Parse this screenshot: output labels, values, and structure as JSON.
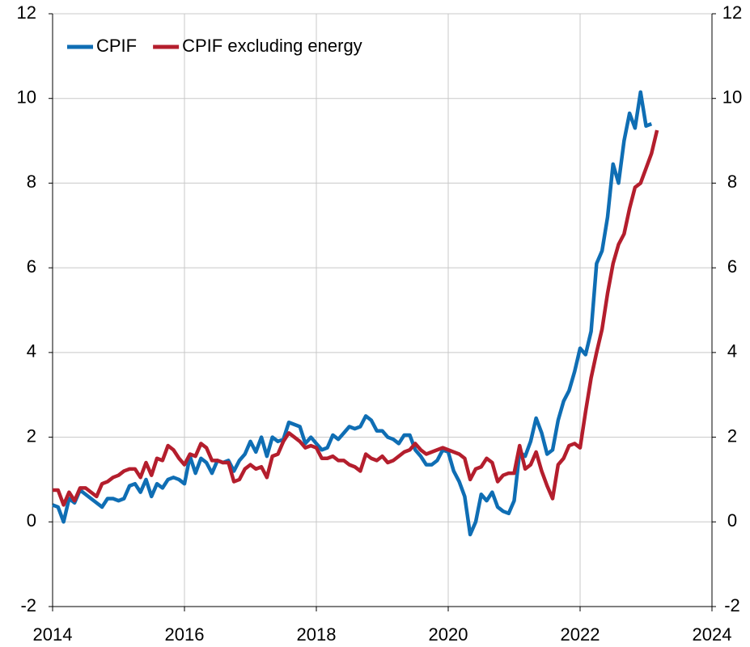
{
  "chart_data": {
    "type": "line",
    "x": [
      2014,
      2014.083,
      2014.167,
      2014.25,
      2014.333,
      2014.417,
      2014.5,
      2014.583,
      2014.667,
      2014.75,
      2014.833,
      2014.917,
      2015,
      2015.083,
      2015.167,
      2015.25,
      2015.333,
      2015.417,
      2015.5,
      2015.583,
      2015.667,
      2015.75,
      2015.833,
      2015.917,
      2016,
      2016.083,
      2016.167,
      2016.25,
      2016.333,
      2016.417,
      2016.5,
      2016.583,
      2016.667,
      2016.75,
      2016.833,
      2016.917,
      2017,
      2017.083,
      2017.167,
      2017.25,
      2017.333,
      2017.417,
      2017.5,
      2017.583,
      2017.667,
      2017.75,
      2017.833,
      2017.917,
      2018,
      2018.083,
      2018.167,
      2018.25,
      2018.333,
      2018.417,
      2018.5,
      2018.583,
      2018.667,
      2018.75,
      2018.833,
      2018.917,
      2019,
      2019.083,
      2019.167,
      2019.25,
      2019.333,
      2019.417,
      2019.5,
      2019.583,
      2019.667,
      2019.75,
      2019.833,
      2019.917,
      2020,
      2020.083,
      2020.167,
      2020.25,
      2020.333,
      2020.417,
      2020.5,
      2020.583,
      2020.667,
      2020.75,
      2020.833,
      2020.917,
      2021,
      2021.083,
      2021.167,
      2021.25,
      2021.333,
      2021.417,
      2021.5,
      2021.583,
      2021.667,
      2021.75,
      2021.833,
      2021.917,
      2022,
      2022.083,
      2022.167,
      2022.25,
      2022.333,
      2022.417,
      2022.5,
      2022.583,
      2022.667,
      2022.75,
      2022.833,
      2022.917,
      2023,
      2023.083,
      2023.167
    ],
    "series": [
      {
        "name": "CPIF",
        "color": "#0f6eb4",
        "values": [
          0.4,
          0.35,
          0.0,
          0.55,
          0.45,
          0.75,
          0.65,
          0.55,
          0.45,
          0.35,
          0.55,
          0.55,
          0.5,
          0.55,
          0.85,
          0.9,
          0.7,
          1.0,
          0.6,
          0.9,
          0.8,
          1.0,
          1.05,
          1.0,
          0.9,
          1.55,
          1.15,
          1.5,
          1.4,
          1.15,
          1.45,
          1.4,
          1.45,
          1.2,
          1.45,
          1.6,
          1.9,
          1.65,
          2.0,
          1.55,
          2.0,
          1.9,
          1.95,
          2.35,
          2.3,
          2.25,
          1.85,
          2.0,
          1.85,
          1.7,
          1.75,
          2.05,
          1.95,
          2.1,
          2.25,
          2.2,
          2.25,
          2.5,
          2.4,
          2.15,
          2.15,
          2.0,
          1.95,
          1.85,
          2.05,
          2.05,
          1.7,
          1.55,
          1.35,
          1.35,
          1.45,
          1.7,
          1.65,
          1.2,
          0.95,
          0.6,
          -0.3,
          0.0,
          0.65,
          0.5,
          0.7,
          0.35,
          0.25,
          0.2,
          0.5,
          1.65,
          1.55,
          1.9,
          2.45,
          2.1,
          1.6,
          1.7,
          2.4,
          2.85,
          3.1,
          3.55,
          4.1,
          3.95,
          4.5,
          6.1,
          6.4,
          7.2,
          8.45,
          8.0,
          9.0,
          9.65,
          9.3,
          10.15,
          9.35,
          9.4,
          null
        ]
      },
      {
        "name": "CPIF excluding energy",
        "color": "#b41e2d",
        "values": [
          0.75,
          0.75,
          0.4,
          0.7,
          0.5,
          0.8,
          0.8,
          0.7,
          0.6,
          0.9,
          0.95,
          1.05,
          1.1,
          1.2,
          1.25,
          1.25,
          1.05,
          1.4,
          1.1,
          1.5,
          1.45,
          1.8,
          1.7,
          1.5,
          1.35,
          1.6,
          1.55,
          1.85,
          1.75,
          1.45,
          1.45,
          1.4,
          1.4,
          0.95,
          1.0,
          1.25,
          1.35,
          1.25,
          1.3,
          1.05,
          1.55,
          1.6,
          1.9,
          2.1,
          2.0,
          1.9,
          1.75,
          1.8,
          1.75,
          1.5,
          1.5,
          1.55,
          1.45,
          1.45,
          1.35,
          1.3,
          1.2,
          1.6,
          1.5,
          1.45,
          1.55,
          1.4,
          1.45,
          1.55,
          1.65,
          1.7,
          1.85,
          1.7,
          1.6,
          1.65,
          1.7,
          1.75,
          1.7,
          1.65,
          1.6,
          1.5,
          1.0,
          1.25,
          1.3,
          1.5,
          1.4,
          0.95,
          1.1,
          1.15,
          1.15,
          1.8,
          1.25,
          1.35,
          1.65,
          1.2,
          0.85,
          0.55,
          1.35,
          1.5,
          1.8,
          1.85,
          1.75,
          2.6,
          3.4,
          4.0,
          4.55,
          5.4,
          6.1,
          6.55,
          6.8,
          7.4,
          7.9,
          8.0,
          8.35,
          8.7,
          9.25
        ]
      }
    ],
    "xlim": [
      2014,
      2024
    ],
    "xticks": [
      2014,
      2016,
      2018,
      2020,
      2022,
      2024
    ],
    "ylim": [
      -2,
      12
    ],
    "yticks": [
      -2,
      0,
      2,
      4,
      6,
      8,
      10,
      12
    ],
    "y2lim": [
      -2,
      12
    ],
    "y2ticks": [
      -2,
      0,
      2,
      4,
      6,
      8,
      10,
      12
    ],
    "grid": true,
    "legend": "upper left"
  }
}
